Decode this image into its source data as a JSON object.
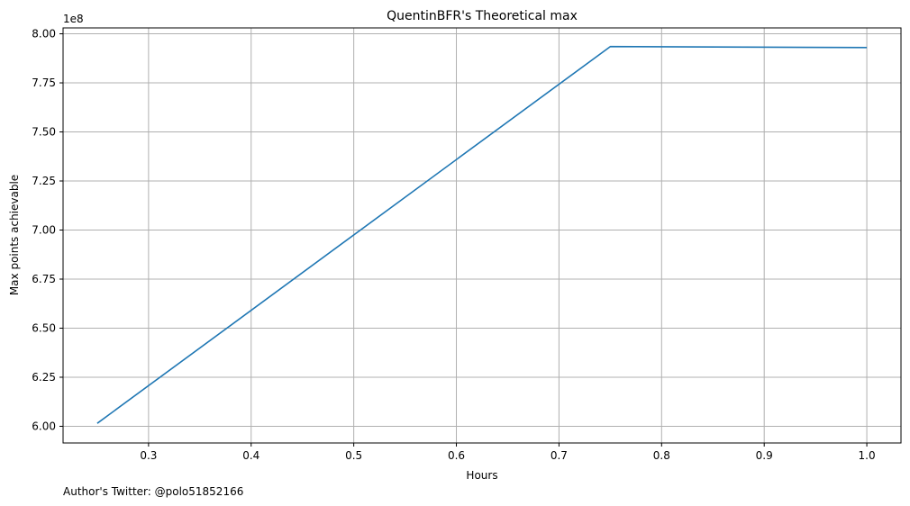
{
  "chart_data": {
    "type": "line",
    "title": "QuentinBFR's Theoretical max",
    "xlabel": "Hours",
    "ylabel": "Max points achievable",
    "y_offset_label": "1e8",
    "footer": "Author's Twitter: @polo51852166",
    "grid": true,
    "xlim": [
      0.2167,
      1.0333
    ],
    "ylim": [
      5.915,
      8.03
    ],
    "x_ticks": [
      0.3,
      0.4,
      0.5,
      0.6,
      0.7,
      0.8,
      0.9,
      1.0
    ],
    "x_tick_labels": [
      "0.3",
      "0.4",
      "0.5",
      "0.6",
      "0.7",
      "0.8",
      "0.9",
      "1.0"
    ],
    "y_ticks": [
      6.0,
      6.25,
      6.5,
      6.75,
      7.0,
      7.25,
      7.5,
      7.75,
      8.0
    ],
    "y_tick_labels": [
      "6.00",
      "6.25",
      "6.50",
      "6.75",
      "7.00",
      "7.25",
      "7.50",
      "7.75",
      "8.00"
    ],
    "series": [
      {
        "color": "#1f77b4",
        "x": [
          0.25,
          0.75,
          1.0
        ],
        "y": [
          6.015,
          7.935,
          7.93
        ]
      }
    ]
  }
}
